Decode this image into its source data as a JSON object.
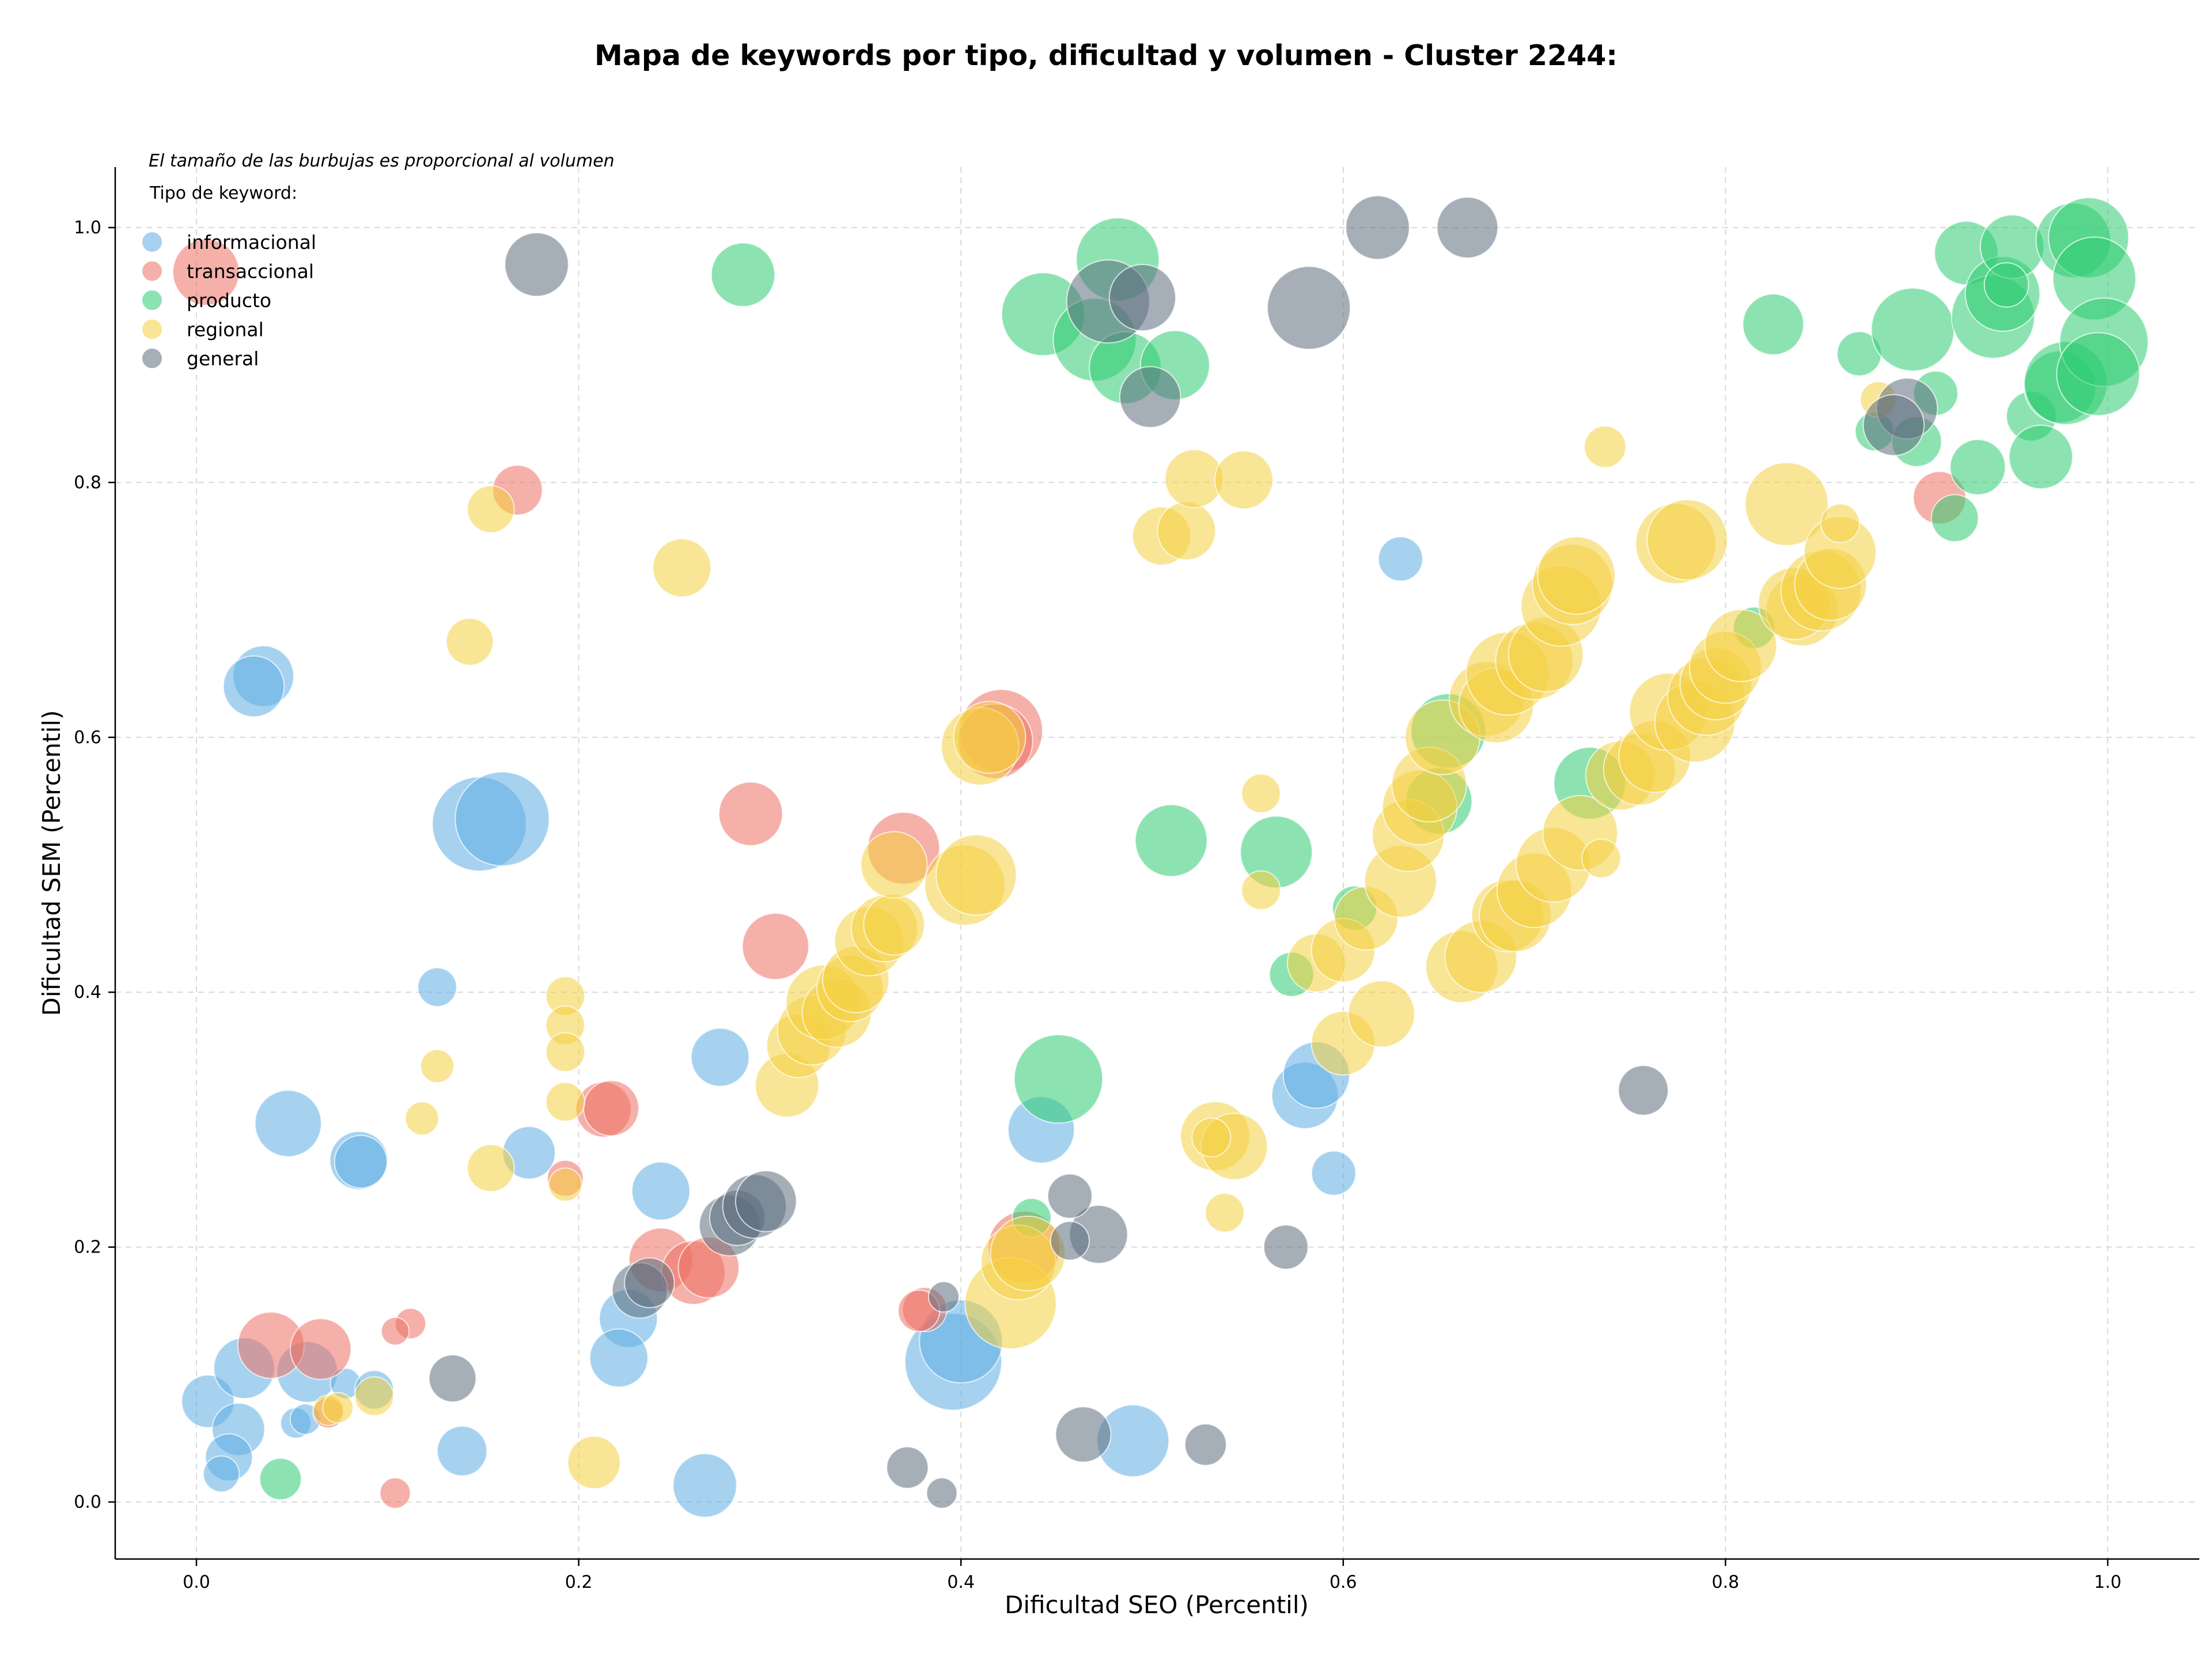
{
  "chart_data": {
    "type": "scatter",
    "title": "Mapa de keywords por tipo, dificultad y volumen - Cluster 2244:",
    "xlabel": "Dificultad SEO (Percentil)",
    "ylabel": "Dificultad SEM (Percentil)",
    "xlim": [
      -0.04,
      1.05
    ],
    "ylim": [
      -0.04,
      1.05
    ],
    "xticks": [
      "0.0",
      "0.2",
      "0.4",
      "0.6",
      "0.8",
      "1.0"
    ],
    "yticks": [
      "0.0",
      "0.2",
      "0.4",
      "0.6",
      "0.8",
      "1.0"
    ],
    "grid": true,
    "legend_position": "top-left",
    "legend_note": "El tamaño de las burbujas es proporcional al volumen",
    "legend_title": "Tipo de keyword:",
    "size_encoding": "volumen (relative bubble area)",
    "series": [
      {
        "name": "informacional",
        "color": "#5DADE2",
        "points": [
          [
            0.148,
            0.532,
            34
          ],
          [
            0.16,
            0.536,
            34
          ],
          [
            0.035,
            0.648,
            22
          ],
          [
            0.03,
            0.64,
            22
          ],
          [
            0.048,
            0.297,
            24
          ],
          [
            0.085,
            0.268,
            21
          ],
          [
            0.086,
            0.267,
            19
          ],
          [
            0.126,
            0.404,
            14
          ],
          [
            0.174,
            0.274,
            19
          ],
          [
            0.243,
            0.244,
            21
          ],
          [
            0.274,
            0.349,
            21
          ],
          [
            0.442,
            0.292,
            24
          ],
          [
            0.58,
            0.319,
            24
          ],
          [
            0.586,
            0.335,
            24
          ],
          [
            0.595,
            0.258,
            16
          ],
          [
            0.63,
            0.74,
            16
          ],
          [
            0.226,
            0.144,
            21
          ],
          [
            0.221,
            0.113,
            21
          ],
          [
            0.396,
            0.11,
            35
          ],
          [
            0.4,
            0.126,
            30
          ],
          [
            0.49,
            0.048,
            26
          ],
          [
            0.266,
            0.013,
            23
          ],
          [
            0.139,
            0.04,
            18
          ],
          [
            0.006,
            0.079,
            19
          ],
          [
            0.025,
            0.105,
            22
          ],
          [
            0.022,
            0.057,
            19
          ],
          [
            0.017,
            0.035,
            17
          ],
          [
            0.013,
            0.022,
            13
          ],
          [
            0.058,
            0.102,
            22
          ],
          [
            0.052,
            0.062,
            11
          ],
          [
            0.057,
            0.065,
            11
          ],
          [
            0.078,
            0.093,
            11
          ],
          [
            0.093,
            0.088,
            14
          ]
        ]
      },
      {
        "name": "transaccional",
        "color": "#EC7063",
        "points": [
          [
            0.005,
            0.965,
            24
          ],
          [
            0.168,
            0.794,
            18
          ],
          [
            0.29,
            0.54,
            23
          ],
          [
            0.303,
            0.436,
            24
          ],
          [
            0.421,
            0.605,
            30
          ],
          [
            0.418,
            0.597,
            27
          ],
          [
            0.37,
            0.513,
            26
          ],
          [
            0.213,
            0.308,
            20
          ],
          [
            0.217,
            0.309,
            20
          ],
          [
            0.193,
            0.254,
            13
          ],
          [
            0.039,
            0.123,
            24
          ],
          [
            0.065,
            0.12,
            22
          ],
          [
            0.112,
            0.14,
            11
          ],
          [
            0.104,
            0.134,
            10
          ],
          [
            0.069,
            0.07,
            11
          ],
          [
            0.104,
            0.007,
            11
          ],
          [
            0.243,
            0.19,
            23
          ],
          [
            0.26,
            0.18,
            23
          ],
          [
            0.268,
            0.184,
            22
          ],
          [
            0.381,
            0.151,
            16
          ],
          [
            0.378,
            0.15,
            15
          ],
          [
            0.433,
            0.2,
            26
          ],
          [
            0.912,
            0.788,
            19
          ]
        ]
      },
      {
        "name": "producto",
        "color": "#2ECC71",
        "points": [
          [
            0.286,
            0.963,
            23
          ],
          [
            0.482,
            0.975,
            30
          ],
          [
            0.443,
            0.932,
            30
          ],
          [
            0.47,
            0.912,
            30
          ],
          [
            0.486,
            0.89,
            26
          ],
          [
            0.512,
            0.892,
            25
          ],
          [
            0.51,
            0.519,
            26
          ],
          [
            0.565,
            0.51,
            26
          ],
          [
            0.573,
            0.414,
            16
          ],
          [
            0.606,
            0.466,
            16
          ],
          [
            0.655,
            0.605,
            27
          ],
          [
            0.65,
            0.55,
            24
          ],
          [
            0.451,
            0.332,
            32
          ],
          [
            0.437,
            0.223,
            14
          ],
          [
            0.044,
            0.018,
            15
          ],
          [
            0.729,
            0.564,
            26
          ],
          [
            0.815,
            0.686,
            15
          ],
          [
            0.825,
            0.924,
            22
          ],
          [
            0.87,
            0.901,
            16
          ],
          [
            0.878,
            0.84,
            14
          ],
          [
            0.91,
            0.87,
            16
          ],
          [
            0.9,
            0.832,
            18
          ],
          [
            0.92,
            0.772,
            17
          ],
          [
            0.932,
            0.812,
            20
          ],
          [
            0.898,
            0.92,
            30
          ],
          [
            0.926,
            0.98,
            23
          ],
          [
            0.94,
            0.93,
            30
          ],
          [
            0.945,
            0.948,
            27
          ],
          [
            0.95,
            0.985,
            23
          ],
          [
            0.947,
            0.955,
            16
          ],
          [
            0.96,
            0.852,
            18
          ],
          [
            0.965,
            0.82,
            23
          ],
          [
            0.975,
            0.875,
            26
          ],
          [
            0.978,
            0.878,
            30
          ],
          [
            0.982,
            0.99,
            27
          ],
          [
            0.99,
            0.992,
            29
          ],
          [
            0.993,
            0.96,
            30
          ],
          [
            0.998,
            0.91,
            32
          ],
          [
            0.995,
            0.885,
            30
          ]
        ]
      },
      {
        "name": "regional",
        "color": "#F4D03F",
        "points": [
          [
            0.154,
            0.779,
            17
          ],
          [
            0.143,
            0.675,
            17
          ],
          [
            0.254,
            0.733,
            21
          ],
          [
            0.193,
            0.397,
            14
          ],
          [
            0.193,
            0.374,
            14
          ],
          [
            0.193,
            0.353,
            14
          ],
          [
            0.193,
            0.314,
            14
          ],
          [
            0.118,
            0.301,
            12
          ],
          [
            0.126,
            0.342,
            12
          ],
          [
            0.154,
            0.262,
            17
          ],
          [
            0.193,
            0.249,
            12
          ],
          [
            0.309,
            0.327,
            23
          ],
          [
            0.315,
            0.358,
            23
          ],
          [
            0.322,
            0.37,
            25
          ],
          [
            0.328,
            0.392,
            27
          ],
          [
            0.335,
            0.384,
            25
          ],
          [
            0.342,
            0.403,
            24
          ],
          [
            0.345,
            0.41,
            24
          ],
          [
            0.352,
            0.44,
            25
          ],
          [
            0.36,
            0.45,
            24
          ],
          [
            0.365,
            0.453,
            22
          ],
          [
            0.365,
            0.5,
            24
          ],
          [
            0.402,
            0.484,
            29
          ],
          [
            0.408,
            0.492,
            29
          ],
          [
            0.41,
            0.593,
            28
          ],
          [
            0.415,
            0.6,
            26
          ],
          [
            0.505,
            0.758,
            21
          ],
          [
            0.518,
            0.762,
            21
          ],
          [
            0.522,
            0.803,
            21
          ],
          [
            0.548,
            0.802,
            21
          ],
          [
            0.557,
            0.556,
            14
          ],
          [
            0.557,
            0.48,
            14
          ],
          [
            0.533,
            0.287,
            25
          ],
          [
            0.543,
            0.279,
            24
          ],
          [
            0.531,
            0.286,
            14
          ],
          [
            0.538,
            0.227,
            14
          ],
          [
            0.426,
            0.156,
            33
          ],
          [
            0.43,
            0.188,
            27
          ],
          [
            0.435,
            0.195,
            27
          ],
          [
            0.208,
            0.031,
            19
          ],
          [
            0.069,
            0.072,
            11
          ],
          [
            0.074,
            0.074,
            11
          ],
          [
            0.093,
            0.083,
            14
          ],
          [
            0.586,
            0.423,
            21
          ],
          [
            0.6,
            0.433,
            23
          ],
          [
            0.612,
            0.458,
            23
          ],
          [
            0.6,
            0.36,
            23
          ],
          [
            0.62,
            0.383,
            24
          ],
          [
            0.63,
            0.487,
            26
          ],
          [
            0.634,
            0.523,
            26
          ],
          [
            0.64,
            0.545,
            27
          ],
          [
            0.645,
            0.563,
            27
          ],
          [
            0.652,
            0.6,
            27
          ],
          [
            0.675,
            0.63,
            27
          ],
          [
            0.68,
            0.625,
            27
          ],
          [
            0.686,
            0.65,
            30
          ],
          [
            0.7,
            0.66,
            28
          ],
          [
            0.706,
            0.665,
            27
          ],
          [
            0.714,
            0.703,
            29
          ],
          [
            0.72,
            0.72,
            29
          ],
          [
            0.722,
            0.727,
            28
          ],
          [
            0.662,
            0.42,
            26
          ],
          [
            0.672,
            0.428,
            26
          ],
          [
            0.686,
            0.46,
            26
          ],
          [
            0.69,
            0.46,
            26
          ],
          [
            0.7,
            0.48,
            27
          ],
          [
            0.71,
            0.5,
            27
          ],
          [
            0.724,
            0.525,
            27
          ],
          [
            0.735,
            0.505,
            14
          ],
          [
            0.737,
            0.828,
            15
          ],
          [
            0.745,
            0.57,
            25
          ],
          [
            0.755,
            0.575,
            26
          ],
          [
            0.763,
            0.585,
            26
          ],
          [
            0.77,
            0.62,
            28
          ],
          [
            0.774,
            0.752,
            29
          ],
          [
            0.78,
            0.755,
            29
          ],
          [
            0.784,
            0.612,
            29
          ],
          [
            0.79,
            0.632,
            28
          ],
          [
            0.795,
            0.642,
            26
          ],
          [
            0.8,
            0.655,
            26
          ],
          [
            0.808,
            0.672,
            26
          ],
          [
            0.832,
            0.783,
            30
          ],
          [
            0.84,
            0.7,
            26
          ],
          [
            0.836,
            0.705,
            26
          ],
          [
            0.85,
            0.715,
            29
          ],
          [
            0.855,
            0.72,
            26
          ],
          [
            0.86,
            0.745,
            26
          ],
          [
            0.86,
            0.768,
            14
          ],
          [
            0.88,
            0.865,
            13
          ]
        ]
      },
      {
        "name": "general",
        "color": "#5D6D7E",
        "points": [
          [
            0.178,
            0.971,
            23
          ],
          [
            0.618,
            1.0,
            23
          ],
          [
            0.665,
            1.0,
            22
          ],
          [
            0.582,
            0.937,
            30
          ],
          [
            0.477,
            0.942,
            30
          ],
          [
            0.495,
            0.945,
            24
          ],
          [
            0.499,
            0.867,
            22
          ],
          [
            0.895,
            0.858,
            22
          ],
          [
            0.888,
            0.845,
            22
          ],
          [
            0.757,
            0.323,
            18
          ],
          [
            0.57,
            0.2,
            16
          ],
          [
            0.472,
            0.21,
            21
          ],
          [
            0.457,
            0.24,
            16
          ],
          [
            0.457,
            0.205,
            14
          ],
          [
            0.391,
            0.161,
            11
          ],
          [
            0.279,
            0.217,
            22
          ],
          [
            0.283,
            0.223,
            20
          ],
          [
            0.292,
            0.232,
            23
          ],
          [
            0.298,
            0.236,
            22
          ],
          [
            0.232,
            0.166,
            20
          ],
          [
            0.237,
            0.172,
            18
          ],
          [
            0.134,
            0.097,
            17
          ],
          [
            0.372,
            0.027,
            15
          ],
          [
            0.39,
            0.007,
            11
          ],
          [
            0.464,
            0.053,
            20
          ],
          [
            0.528,
            0.045,
            15
          ]
        ]
      }
    ]
  }
}
